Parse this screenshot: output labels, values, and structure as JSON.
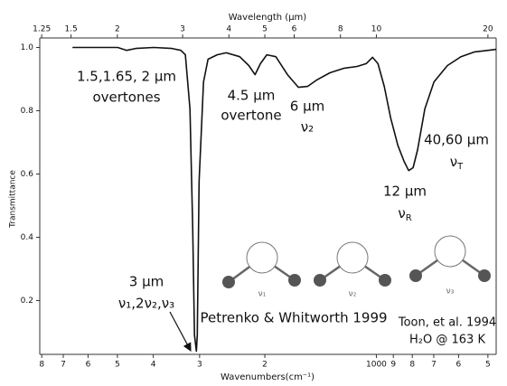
{
  "chart_data": {
    "type": "line",
    "x_label": "Wavenumbers(cm⁻¹)",
    "x2_label": "Wavelength (μm)",
    "y_label": "Transmittance",
    "x": [
      6610,
      4990,
      4718,
      4461,
      3987,
      3564,
      3370,
      3277,
      3185,
      3131,
      3096,
      3061,
      3044,
      3010,
      2927,
      2847,
      2690,
      2543,
      2338,
      2210,
      2126,
      2055,
      1976,
      1868,
      1737,
      1623,
      1534,
      1450,
      1334,
      1226,
      1127,
      1065,
      1024,
      990,
      952,
      915,
      875,
      842,
      818,
      796,
      774,
      740,
      699,
      643,
      591,
      543,
      499,
      475
    ],
    "values": [
      1.0,
      1.0,
      0.991,
      0.997,
      1.0,
      0.997,
      0.991,
      0.977,
      0.806,
      0.434,
      0.091,
      0.04,
      0.091,
      0.577,
      0.891,
      0.963,
      0.977,
      0.983,
      0.971,
      0.943,
      0.914,
      0.949,
      0.977,
      0.971,
      0.914,
      0.874,
      0.877,
      0.897,
      0.92,
      0.934,
      0.94,
      0.949,
      0.969,
      0.949,
      0.877,
      0.777,
      0.691,
      0.64,
      0.611,
      0.62,
      0.677,
      0.806,
      0.891,
      0.943,
      0.971,
      0.986,
      0.991,
      0.994
    ],
    "color": "#111111",
    "x_log": true,
    "xlim": [
      8100,
      475
    ],
    "xticks": [
      {
        "value": 8000,
        "label": "8"
      },
      {
        "value": 7000,
        "label": "7"
      },
      {
        "value": 6000,
        "label": "6"
      },
      {
        "value": 5000,
        "label": "5"
      },
      {
        "value": 4000,
        "label": "4"
      },
      {
        "value": 3000,
        "label": "3"
      },
      {
        "value": 2000,
        "label": "2"
      },
      1000,
      {
        "value": 900,
        "label": "9"
      },
      {
        "value": 800,
        "label": "8"
      },
      {
        "value": 700,
        "label": "7"
      },
      {
        "value": 600,
        "label": "6"
      },
      {
        "value": 500,
        "label": "5"
      }
    ],
    "x2lim": [
      1.235,
      21.05
    ],
    "x2ticks": [
      1.25,
      1.5,
      2,
      3,
      4,
      5,
      6,
      8,
      10,
      20
    ],
    "ylim": [
      0.03,
      1.03
    ],
    "yticks": [
      0.2,
      0.4,
      0.6,
      0.8,
      {
        "value": 1,
        "label": "1.0"
      }
    ],
    "annotations": [
      "1.5,1.65, 2 µm",
      "overtones",
      "4.5 µm",
      "overtone",
      "6 µm",
      "ν₂",
      "12 µm",
      "νR",
      "40,60 µm",
      "νT",
      "3 µm",
      "ν₁,2ν₂,ν₃",
      "Petrenko & Whitworth 1999",
      "Toon, et al.  1994",
      "H₂O @ 163 K"
    ],
    "modes": [
      "ν₁",
      "ν₂",
      "ν₃"
    ]
  }
}
